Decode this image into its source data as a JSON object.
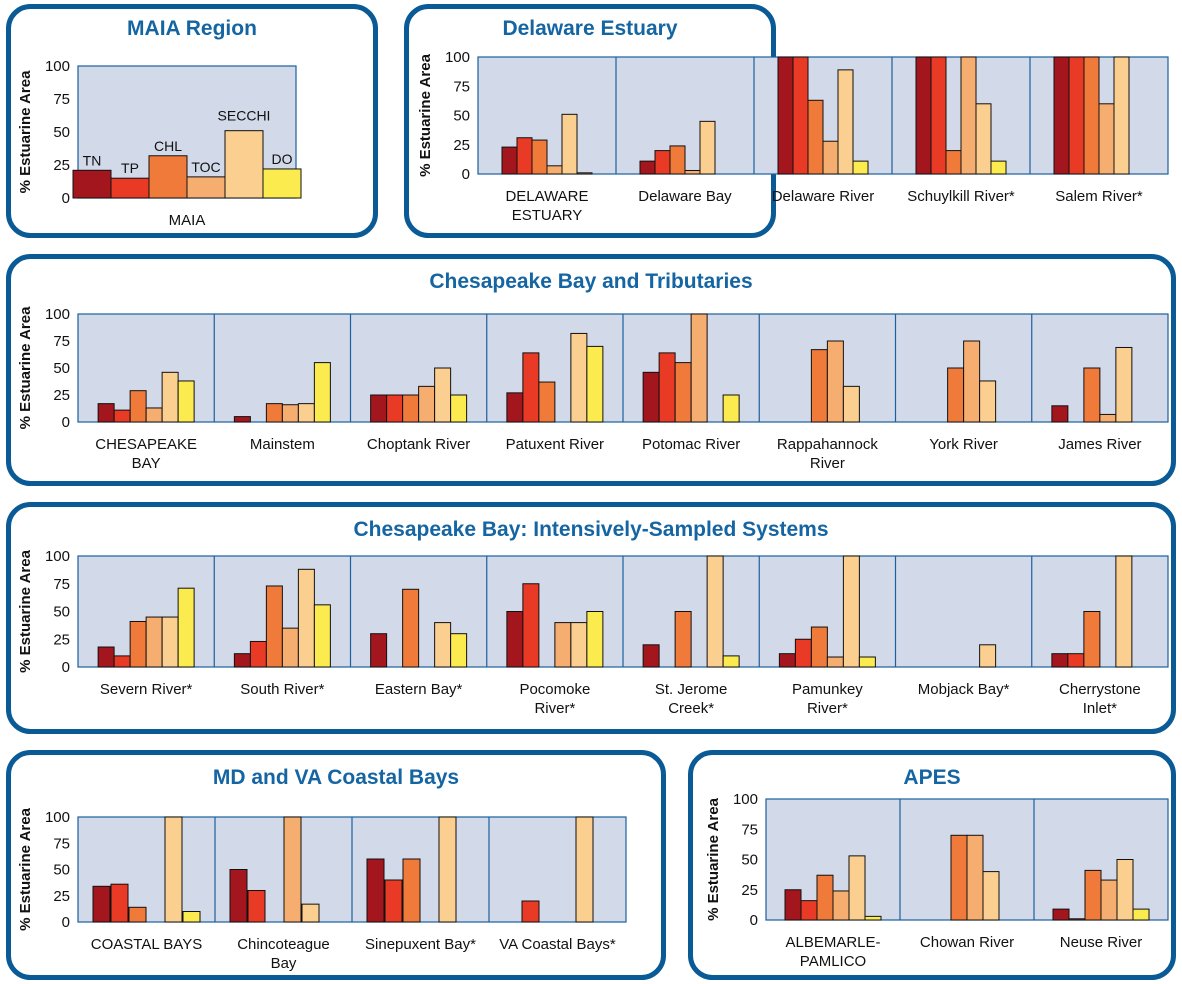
{
  "colors": {
    "frame": "#0a5a96",
    "title": "#1565a3",
    "plot_bg": "#d2d9e9",
    "plot_border": "#1a5f9e",
    "bar_outline": "#111111",
    "axis_text": "#111111",
    "series": [
      "#a3161e",
      "#e83a24",
      "#ef7a3a",
      "#f6ad70",
      "#fbcf8f",
      "#fbeb4f"
    ]
  },
  "chart_data": [
    {
      "id": "maia",
      "type": "bar",
      "title": "MAIA Region",
      "ylabel": "% Estuarine Area",
      "ylim": [
        0,
        100
      ],
      "yticks": [
        "0",
        "25",
        "50",
        "75",
        "100"
      ],
      "series_names": [
        "TN",
        "TP",
        "CHL",
        "TOC",
        "SECCHI",
        "DO"
      ],
      "categories": [
        {
          "label": [
            "MAIA"
          ],
          "values": [
            21,
            15,
            32,
            16,
            51,
            22
          ]
        }
      ]
    },
    {
      "id": "delaware",
      "type": "bar",
      "title": "Delaware Estuary",
      "ylabel": "% Estuarine Area",
      "ylim": [
        0,
        100
      ],
      "yticks": [
        "0",
        "25",
        "50",
        "75",
        "100"
      ],
      "categories": [
        {
          "label": [
            "DELAWARE",
            "ESTUARY"
          ],
          "values": [
            23,
            31,
            29,
            7,
            51,
            1
          ]
        },
        {
          "label": [
            "Delaware Bay"
          ],
          "values": [
            11,
            20,
            24,
            3,
            45,
            0
          ]
        },
        {
          "label": [
            "Delaware River"
          ],
          "values": [
            100,
            100,
            63,
            28,
            89,
            11
          ]
        },
        {
          "label": [
            "Schuylkill River*"
          ],
          "values": [
            100,
            100,
            20,
            100,
            60,
            11
          ]
        },
        {
          "label": [
            "Salem River*"
          ],
          "values": [
            100,
            100,
            100,
            60,
            100,
            0
          ]
        }
      ]
    },
    {
      "id": "chesapeake",
      "type": "bar",
      "title": "Chesapeake Bay and Tributaries",
      "ylabel": "% Estuarine Area",
      "ylim": [
        0,
        100
      ],
      "yticks": [
        "0",
        "25",
        "50",
        "75",
        "100"
      ],
      "categories": [
        {
          "label": [
            "CHESAPEAKE",
            "BAY"
          ],
          "values": [
            17,
            11,
            29,
            13,
            46,
            38
          ]
        },
        {
          "label": [
            "Mainstem"
          ],
          "values": [
            5,
            0,
            17,
            16,
            17,
            55
          ]
        },
        {
          "label": [
            "Choptank River"
          ],
          "values": [
            25,
            25,
            25,
            33,
            50,
            25
          ]
        },
        {
          "label": [
            "Patuxent River"
          ],
          "values": [
            27,
            64,
            37,
            0,
            82,
            70
          ]
        },
        {
          "label": [
            "Potomac River"
          ],
          "values": [
            46,
            64,
            55,
            100,
            0,
            25
          ]
        },
        {
          "label": [
            "Rappahannock",
            "River"
          ],
          "values": [
            0,
            0,
            67,
            75,
            33,
            0
          ]
        },
        {
          "label": [
            "York River"
          ],
          "values": [
            0,
            0,
            50,
            75,
            38,
            0
          ]
        },
        {
          "label": [
            "James River"
          ],
          "values": [
            15,
            0,
            50,
            7,
            69,
            0
          ]
        }
      ]
    },
    {
      "id": "intensive",
      "type": "bar",
      "title": "Chesapeake Bay: Intensively-Sampled Systems",
      "ylabel": "% Estuarine Area",
      "ylim": [
        0,
        100
      ],
      "yticks": [
        "0",
        "25",
        "50",
        "75",
        "100"
      ],
      "categories": [
        {
          "label": [
            "Severn River*"
          ],
          "values": [
            18,
            10,
            41,
            45,
            45,
            71
          ]
        },
        {
          "label": [
            "South River*"
          ],
          "values": [
            12,
            23,
            73,
            35,
            88,
            56
          ]
        },
        {
          "label": [
            "Eastern Bay*"
          ],
          "values": [
            30,
            0,
            70,
            0,
            40,
            30
          ]
        },
        {
          "label": [
            "Pocomoke",
            "River*"
          ],
          "values": [
            50,
            75,
            0,
            40,
            40,
            50
          ]
        },
        {
          "label": [
            "St. Jerome",
            "Creek*"
          ],
          "values": [
            20,
            0,
            50,
            0,
            100,
            10
          ]
        },
        {
          "label": [
            "Pamunkey",
            "River*"
          ],
          "values": [
            12,
            25,
            36,
            9,
            100,
            9
          ]
        },
        {
          "label": [
            "Mobjack Bay*"
          ],
          "values": [
            0,
            0,
            0,
            0,
            20,
            0
          ]
        },
        {
          "label": [
            "Cherrystone",
            "Inlet*"
          ],
          "values": [
            12,
            12,
            50,
            0,
            100,
            0
          ]
        }
      ]
    },
    {
      "id": "coastal",
      "type": "bar",
      "title": "MD and VA Coastal Bays",
      "ylabel": "% Estuarine Area",
      "ylim": [
        0,
        100
      ],
      "yticks": [
        "0",
        "25",
        "50",
        "75",
        "100"
      ],
      "categories": [
        {
          "label": [
            "COASTAL BAYS"
          ],
          "values": [
            34,
            36,
            14,
            0,
            100,
            10
          ]
        },
        {
          "label": [
            "Chincoteague",
            "Bay"
          ],
          "values": [
            50,
            30,
            0,
            100,
            17,
            0
          ]
        },
        {
          "label": [
            "Sinepuxent Bay*"
          ],
          "values": [
            60,
            40,
            60,
            0,
            100,
            0
          ]
        },
        {
          "label": [
            "VA Coastal Bays*"
          ],
          "values": [
            0,
            20,
            0,
            0,
            100,
            0
          ]
        }
      ]
    },
    {
      "id": "apes",
      "type": "bar",
      "title": "APES",
      "ylabel": "% Estuarine Area",
      "ylim": [
        0,
        100
      ],
      "yticks": [
        "0",
        "25",
        "50",
        "75",
        "100"
      ],
      "categories": [
        {
          "label": [
            "ALBEMARLE-",
            "PAMLICO"
          ],
          "values": [
            25,
            16,
            37,
            24,
            53,
            3
          ]
        },
        {
          "label": [
            "Chowan River"
          ],
          "values": [
            0,
            0,
            70,
            70,
            40,
            0
          ]
        },
        {
          "label": [
            "Neuse River"
          ],
          "values": [
            9,
            1,
            41,
            33,
            50,
            9
          ]
        }
      ]
    }
  ]
}
